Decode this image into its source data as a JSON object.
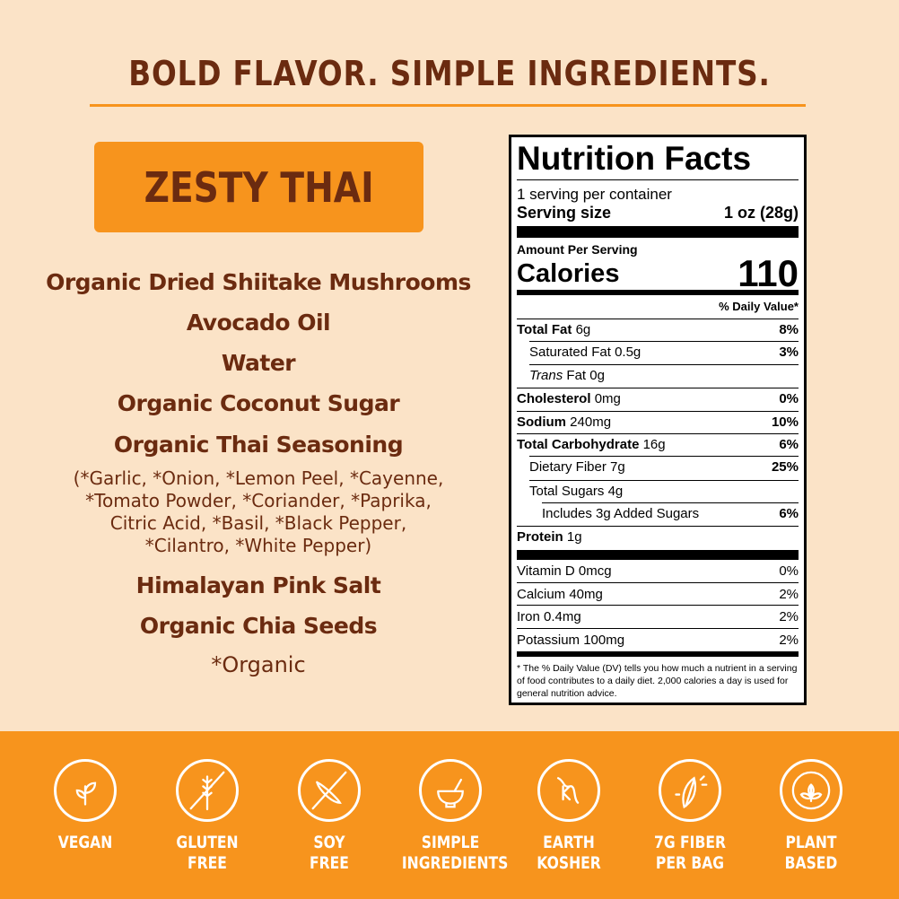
{
  "headline": "BOLD FLAVOR. SIMPLE INGREDIENTS.",
  "flavor": "ZESTY THAI",
  "ingredients": [
    "Organic Dried Shiitake Mushrooms",
    "Avocado Oil",
    "Water",
    "Organic Coconut Sugar",
    "Organic Thai Seasoning"
  ],
  "seasoning_detail": [
    "(*Garlic, *Onion, *Lemon Peel, *Cayenne,",
    "*Tomato Powder, *Coriander, *Paprika,",
    "Citric Acid, *Basil, *Black Pepper,",
    "*Cilantro, *White Pepper)"
  ],
  "ingredients2": [
    "Himalayan Pink Salt",
    "Organic Chia Seeds"
  ],
  "organic_note": "*Organic",
  "nutrition": {
    "title": "Nutrition Facts",
    "servings": "1 serving per container",
    "serving_size_label": "Serving size",
    "serving_size": "1 oz (28g)",
    "amount_per_serving": "Amount Per Serving",
    "calories_label": "Calories",
    "calories": "110",
    "dv_header": "% Daily Value*",
    "rows": [
      {
        "label": "Total Fat",
        "amount": "6g",
        "dv": "8%"
      },
      {
        "label": "Saturated Fat",
        "amount": "0.5g",
        "dv": "3%"
      },
      {
        "label": "Trans",
        "label2": "Fat",
        "amount": "0g",
        "dv": ""
      },
      {
        "label": "Cholesterol",
        "amount": "0mg",
        "dv": "0%"
      },
      {
        "label": "Sodium",
        "amount": "240mg",
        "dv": "10%"
      },
      {
        "label": "Total Carbohydrate",
        "amount": "16g",
        "dv": "6%"
      },
      {
        "label": "Dietary Fiber",
        "amount": "7g",
        "dv": "25%"
      },
      {
        "label": "Total Sugars",
        "amount": "4g",
        "dv": ""
      },
      {
        "label": "Includes 3g Added Sugars",
        "amount": "",
        "dv": "6%"
      },
      {
        "label": "Protein",
        "amount": "1g",
        "dv": ""
      }
    ],
    "vitamins": [
      {
        "label": "Vitamin D 0mcg",
        "dv": "0%"
      },
      {
        "label": "Calcium 40mg",
        "dv": "2%"
      },
      {
        "label": "Iron 0.4mg",
        "dv": "2%"
      },
      {
        "label": "Potassium 100mg",
        "dv": "2%"
      }
    ],
    "footnote": "* The % Daily Value (DV) tells you how much a nutrient in a serving of food contributes to a daily diet. 2,000 calories a day is used for general nutrition advice."
  },
  "badges": [
    {
      "icon": "sprout-icon",
      "l1": "VEGAN",
      "l2": ""
    },
    {
      "icon": "no-wheat-icon",
      "l1": "GLUTEN",
      "l2": "FREE"
    },
    {
      "icon": "no-soy-icon",
      "l1": "SOY",
      "l2": "FREE"
    },
    {
      "icon": "bowl-icon",
      "l1": "SIMPLE",
      "l2": "INGREDIENTS"
    },
    {
      "icon": "earth-kosher-icon",
      "l1": "EARTH",
      "l2": "KOSHER"
    },
    {
      "icon": "leaf-icon",
      "l1": "7G FIBER",
      "l2": "PER BAG"
    },
    {
      "icon": "certified-plant-based-icon",
      "l1": "PLANT",
      "l2": "BASED"
    }
  ],
  "colors": {
    "background": "#fbe3c7",
    "accent": "#f7941d",
    "text": "#6b2b10"
  }
}
